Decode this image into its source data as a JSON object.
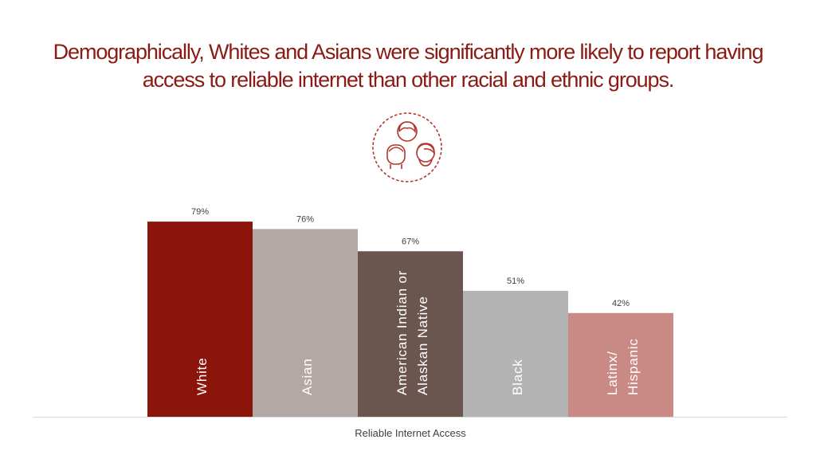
{
  "slide": {
    "title": "Demographically, Whites and Asians were significantly more likely to report having access to reliable internet than other racial and ethnic groups.",
    "icon": "people-group-icon"
  },
  "colors": {
    "title": "#8b1a14",
    "icon": "#b3362d",
    "axis": "#d9d9d9",
    "data_label": "#404040",
    "xlabel": "#404040"
  },
  "chart_data": {
    "type": "bar",
    "categories": [
      "White",
      "Asian",
      "American Indian or Alaskan Native",
      "Black",
      "Latinx/ Hispanic"
    ],
    "category_lines": [
      [
        "White"
      ],
      [
        "Asian"
      ],
      [
        "American Indian or",
        "Alaskan Native"
      ],
      [
        "Black"
      ],
      [
        "Latinx/",
        "Hispanic"
      ]
    ],
    "values": [
      79,
      76,
      67,
      51,
      42
    ],
    "value_labels": [
      "79%",
      "76%",
      "67%",
      "51%",
      "42%"
    ],
    "bar_colors": [
      "#8c150b",
      "#b4a8a5",
      "#6b554f",
      "#b3b3b3",
      "#c98985"
    ],
    "title": "",
    "xlabel": "Reliable Internet Access",
    "ylabel": "",
    "ylim": [
      0,
      100
    ],
    "grid": false,
    "legend": "none",
    "category_labels_inside_bars": true
  }
}
